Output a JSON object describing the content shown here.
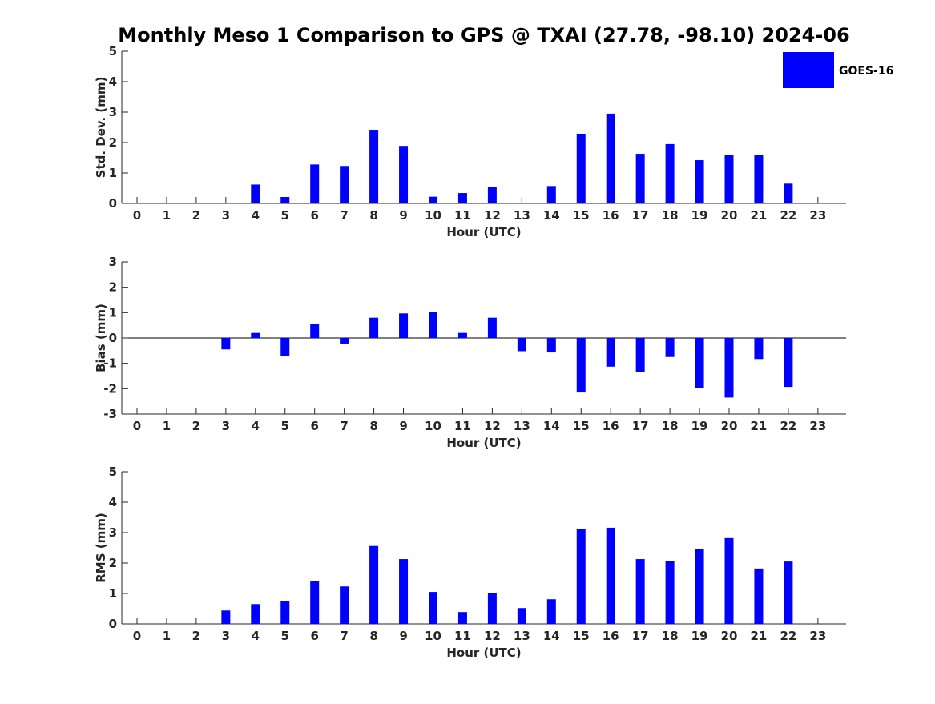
{
  "figure": {
    "title": "Monthly Meso 1 Comparison to GPS @ TXAI (27.78, -98.10) 2024-06",
    "legend_label": "GOES-16",
    "bar_color": "#0000ff",
    "legend_position": "top-right"
  },
  "chart_data": [
    {
      "type": "bar",
      "xlabel": "Hour (UTC)",
      "ylabel": "Std. Dev. (mm)",
      "ylim": [
        0,
        5
      ],
      "yticks": [
        0,
        1,
        2,
        3,
        4,
        5
      ],
      "categories": [
        "0",
        "1",
        "2",
        "3",
        "4",
        "5",
        "6",
        "7",
        "8",
        "9",
        "10",
        "11",
        "12",
        "13",
        "14",
        "15",
        "16",
        "17",
        "18",
        "19",
        "20",
        "21",
        "22",
        "23"
      ],
      "series": [
        {
          "name": "GOES-16",
          "values": [
            0,
            0,
            0,
            0,
            0.62,
            0.21,
            1.28,
            1.23,
            2.42,
            1.89,
            0.22,
            0.34,
            0.55,
            0,
            0.57,
            2.29,
            2.95,
            1.63,
            1.95,
            1.42,
            1.58,
            1.6,
            0.65,
            0
          ]
        }
      ],
      "grid": false
    },
    {
      "type": "bar",
      "xlabel": "Hour (UTC)",
      "ylabel": "Bias (mm)",
      "ylim": [
        -3,
        3
      ],
      "yticks": [
        -3,
        -2,
        -1,
        0,
        1,
        2,
        3
      ],
      "categories": [
        "0",
        "1",
        "2",
        "3",
        "4",
        "5",
        "6",
        "7",
        "8",
        "9",
        "10",
        "11",
        "12",
        "13",
        "14",
        "15",
        "16",
        "17",
        "18",
        "19",
        "20",
        "21",
        "22",
        "23"
      ],
      "series": [
        {
          "name": "GOES-16",
          "values": [
            0,
            0,
            0,
            -0.45,
            0.2,
            -0.72,
            0.55,
            -0.22,
            0.8,
            0.97,
            1.02,
            0.2,
            0.8,
            -0.52,
            -0.57,
            -2.15,
            -1.13,
            -1.35,
            -0.75,
            -1.98,
            -2.35,
            -0.83,
            -1.93,
            0
          ]
        }
      ],
      "grid": false
    },
    {
      "type": "bar",
      "xlabel": "Hour (UTC)",
      "ylabel": "RMS (mm)",
      "ylim": [
        0,
        5
      ],
      "yticks": [
        0,
        1,
        2,
        3,
        4,
        5
      ],
      "categories": [
        "0",
        "1",
        "2",
        "3",
        "4",
        "5",
        "6",
        "7",
        "8",
        "9",
        "10",
        "11",
        "12",
        "13",
        "14",
        "15",
        "16",
        "17",
        "18",
        "19",
        "20",
        "21",
        "22",
        "23"
      ],
      "series": [
        {
          "name": "GOES-16",
          "values": [
            0,
            0,
            0,
            0.44,
            0.65,
            0.76,
            1.4,
            1.23,
            2.56,
            2.13,
            1.05,
            0.39,
            1.0,
            0.52,
            0.81,
            3.13,
            3.16,
            2.13,
            2.07,
            2.45,
            2.82,
            1.82,
            2.05,
            0
          ]
        }
      ],
      "grid": false
    }
  ]
}
